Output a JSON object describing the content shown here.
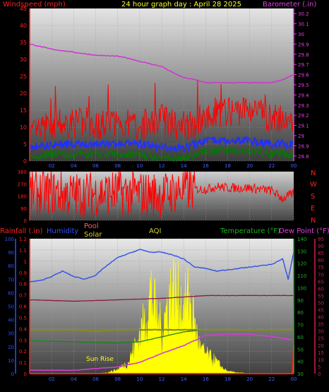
{
  "header": {
    "left": "Windspeed (mph)",
    "center": "24 hour graph day : April 28 2025",
    "right": "Barometer (.in)"
  },
  "dir_labels": [
    "N",
    "W",
    "S",
    "E",
    "N"
  ],
  "bottom_header": {
    "rainfall": "Rainfall (.in)",
    "humidity": "Humidity",
    "pool": "Pool",
    "solar": "Solar",
    "aqi": "AQI",
    "temperature": "Temperature (°F)",
    "dewpoint": "Dew Point (°F)"
  },
  "annotation": "Sun Rise",
  "colors": {
    "wind_gust": "#ff0000",
    "wind_avg": "#2030ff",
    "wind_low": "#007a00",
    "barometer": "#d030d0",
    "direction": "#ff0000",
    "humidity": "#3050e8",
    "dewpoint_line": "#8b1a3a",
    "temperature": "#208020",
    "pool": "#8a8a20",
    "solar": "#ffff00",
    "rain": "#ff2020",
    "aqi": "#d040d0",
    "axis_red": "#ff2020",
    "axis_magenta": "#e040e0",
    "axis_blue": "#3050ff",
    "axis_green": "#20b020",
    "axis_crimson": "#d02050"
  },
  "chart_data": [
    {
      "type": "line",
      "title": "24 hour graph day : April 28 2025",
      "ylabel": "Windspeed (mph)",
      "y2label": "Barometer (.in)",
      "ylim": [
        0,
        45
      ],
      "y2lim": [
        28.75,
        30.25
      ],
      "xlim": [
        0,
        24
      ],
      "x_ticks": [
        "02",
        "04",
        "06",
        "08",
        "10",
        "12",
        "14",
        "16",
        "18",
        "20",
        "22",
        "00"
      ],
      "y_ticks": [
        "0",
        "5",
        "10",
        "15",
        "20",
        "25",
        "30",
        "35",
        "40",
        "45"
      ],
      "y2_ticks": [
        "28.8",
        "28.9",
        "29",
        "29.1",
        "29.2",
        "29.3",
        "29.4",
        "29.5",
        "29.6",
        "29.7",
        "29.8",
        "29.9",
        "30",
        "30.1",
        "30.2"
      ],
      "series": [
        {
          "name": "Barometer (.in)",
          "x": [
            0,
            2,
            4,
            6,
            8,
            9,
            10,
            12,
            13,
            14,
            15,
            16,
            18,
            20,
            22,
            23,
            24
          ],
          "values": [
            29.9,
            29.85,
            29.82,
            29.79,
            29.78,
            29.76,
            29.73,
            29.68,
            29.62,
            29.57,
            29.55,
            29.52,
            29.52,
            29.52,
            29.52,
            29.55,
            29.6
          ]
        },
        {
          "name": "Windspeed gust",
          "x": [
            0,
            2,
            4,
            6,
            8,
            10,
            12,
            14,
            16,
            18,
            20,
            22,
            24
          ],
          "values": [
            7,
            10,
            11,
            10,
            11,
            10,
            12,
            9,
            13,
            14,
            15,
            12,
            11
          ]
        },
        {
          "name": "Windspeed avg",
          "x": [
            0,
            2,
            4,
            6,
            8,
            10,
            12,
            14,
            16,
            18,
            20,
            22,
            24
          ],
          "values": [
            4,
            5,
            5,
            5,
            5,
            5,
            4,
            4,
            6,
            6,
            6,
            5,
            5
          ]
        },
        {
          "name": "Windspeed low",
          "x": [
            0,
            2,
            4,
            6,
            8,
            10,
            12,
            14,
            16,
            18,
            20,
            22,
            24
          ],
          "values": [
            1,
            2,
            2,
            2,
            2,
            2,
            1,
            1,
            3,
            3,
            3,
            2,
            2
          ]
        }
      ]
    },
    {
      "type": "scatter",
      "ylim": [
        0,
        360
      ],
      "xlim": [
        0,
        24
      ],
      "y_ticks": [
        "0",
        "90",
        "180",
        "270",
        "360"
      ],
      "series": [
        {
          "name": "Wind direction",
          "x": [
            0,
            2,
            4,
            6,
            8,
            10,
            12,
            14,
            16,
            17,
            18,
            20,
            22,
            23,
            24
          ],
          "values": [
            200,
            210,
            190,
            200,
            210,
            200,
            190,
            230,
            230,
            250,
            240,
            240,
            220,
            160,
            200
          ]
        }
      ]
    },
    {
      "type": "line",
      "xlim": [
        0,
        24
      ],
      "x_ticks": [
        "02",
        "04",
        "06",
        "08",
        "10",
        "12",
        "14",
        "16",
        "18",
        "20",
        "22",
        "00"
      ],
      "rain_ticks": [
        "0",
        "0.1",
        "0.2",
        "0.3",
        "0.4",
        "0.5",
        "0.6",
        "0.7",
        "0.8",
        "0.9",
        "1",
        "1.1",
        "1.2"
      ],
      "humidity_ticks": [
        "0",
        "10",
        "20",
        "30",
        "40",
        "50",
        "60",
        "70",
        "80",
        "90",
        "100"
      ],
      "temp_ticks": [
        "30",
        "40",
        "50",
        "60",
        "70",
        "80",
        "90",
        "100",
        "110",
        "120",
        "130",
        "140"
      ],
      "dew_ticks": [
        "0",
        "5",
        "10",
        "15",
        "20",
        "25",
        "30",
        "35",
        "40",
        "45",
        "50",
        "55",
        "60",
        "65",
        "70",
        "75",
        "80",
        "85",
        "90",
        "95"
      ],
      "series": [
        {
          "name": "Humidity",
          "x": [
            0,
            1,
            2,
            3,
            4,
            5,
            6,
            7,
            8,
            9,
            10,
            11,
            12,
            13,
            14,
            15,
            16,
            17,
            18,
            19,
            20,
            21,
            22,
            23,
            23.5,
            24
          ],
          "values": [
            68,
            69,
            72,
            76,
            72,
            70,
            73,
            80,
            86,
            89,
            92,
            90,
            90,
            88,
            85,
            79,
            78,
            76,
            77,
            78,
            79,
            80,
            81,
            85,
            70,
            90
          ]
        },
        {
          "name": "Dew Point",
          "x": [
            0,
            4,
            8,
            12,
            14,
            16,
            20,
            24
          ],
          "values": [
            52,
            51,
            52,
            53,
            54,
            55,
            55,
            55
          ]
        },
        {
          "name": "Pool",
          "x": [
            0,
            2,
            4,
            6,
            8,
            10,
            12,
            14,
            16,
            18,
            20,
            22,
            24
          ],
          "values": [
            0.39,
            0.39,
            0.39,
            0.38,
            0.39,
            0.39,
            0.39,
            0.39,
            0.39,
            0.39,
            0.39,
            0.39,
            0.39
          ]
        },
        {
          "name": "Temperature",
          "x": [
            0,
            4,
            8,
            10,
            12,
            14,
            16,
            18,
            20,
            22,
            24
          ],
          "values": [
            57,
            56,
            55,
            56,
            60,
            64,
            66,
            66,
            66,
            66,
            66
          ]
        },
        {
          "name": "AQI",
          "x": [
            0,
            4,
            8,
            10,
            12,
            14,
            16,
            18,
            20,
            22,
            24
          ],
          "values": [
            0.03,
            0.03,
            0.06,
            0.1,
            0.18,
            0.25,
            0.34,
            0.35,
            0.35,
            0.33,
            0.3
          ]
        },
        {
          "name": "Solar",
          "x": [
            0,
            6,
            7,
            8,
            9,
            10,
            10.5,
            11,
            11.5,
            12,
            12.5,
            13,
            14,
            14.5,
            15,
            15.5,
            16,
            17,
            17.5,
            18,
            19,
            20,
            24
          ],
          "values": [
            0,
            0,
            0.01,
            0.04,
            0.12,
            0.4,
            0.55,
            0.85,
            0.6,
            0.45,
            0.7,
            0.9,
            0.65,
            0.8,
            0.5,
            0.25,
            0.2,
            0.12,
            0.06,
            0.02,
            0.01,
            0,
            0
          ]
        },
        {
          "name": "Rainfall",
          "x": [
            0,
            23.9,
            24
          ],
          "values": [
            0,
            0,
            0.25
          ]
        }
      ]
    }
  ]
}
